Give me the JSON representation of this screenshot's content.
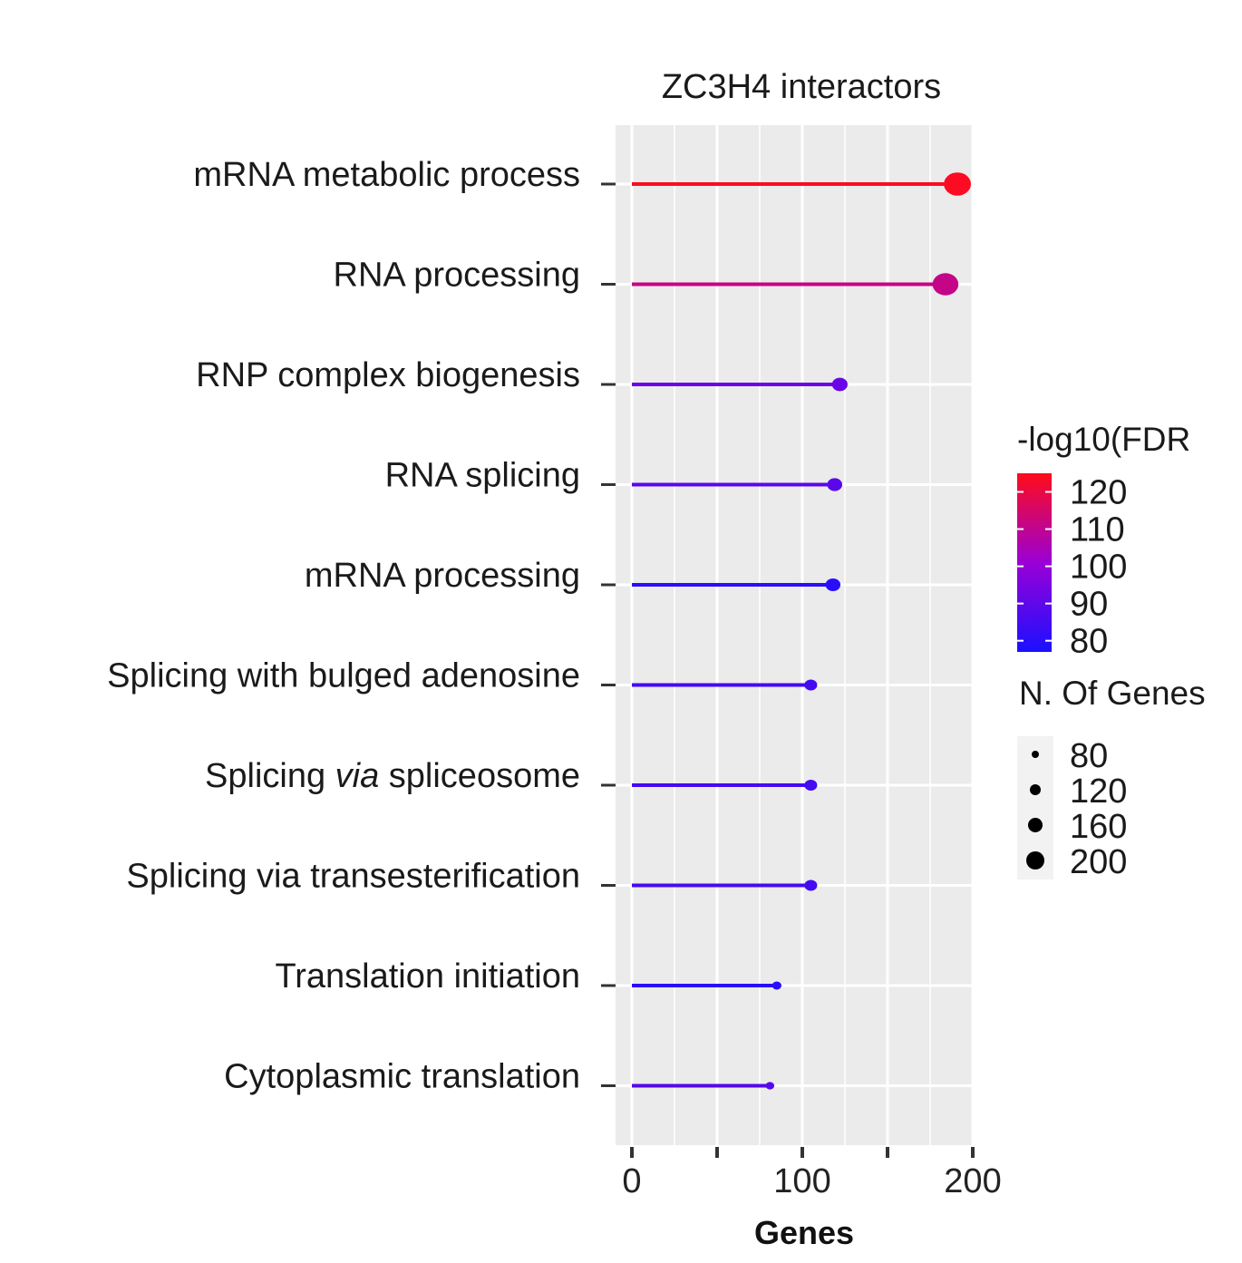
{
  "chart_data": {
    "type": "lollipop",
    "title": "ZC3H4 interactors",
    "xlabel": "Genes",
    "xlim": [
      0,
      200
    ],
    "x_ticks": [
      0,
      100,
      200
    ],
    "grid": true,
    "categories": [
      "mRNA metabolic process",
      "RNA processing",
      "RNP complex biogenesis",
      "RNA splicing",
      "mRNA processing",
      "Splicing with bulged adenosine",
      "Splicing via spliceosome",
      "Splicing via transesterification",
      "Translation initiation",
      "Cytoplasmic translation"
    ],
    "italic_word": {
      "index": 6,
      "before": "Splicing ",
      "italic": "via",
      "after": " spliceosome"
    },
    "values": [
      191,
      184,
      122,
      119,
      118,
      105,
      105,
      105,
      85,
      81
    ],
    "neg_log10_fdr": [
      124,
      111,
      92,
      89,
      80,
      85,
      85,
      85,
      80,
      88
    ],
    "color_legend": {
      "title": "-log10(FDR",
      "ticks": [
        120,
        110,
        100,
        90,
        80
      ],
      "range": [
        77,
        125
      ],
      "low_color": "#1a10ff",
      "mid_color": "#9a00d6",
      "high_color": "#ff0c1a"
    },
    "size_legend": {
      "title": "N. Of Genes",
      "ticks": [
        80,
        120,
        160,
        200
      ]
    },
    "legend_position": "right",
    "colors": {
      "panel_background": "#ebebeb",
      "grid_line": "#ffffff",
      "axis_tick": "#333333"
    }
  }
}
